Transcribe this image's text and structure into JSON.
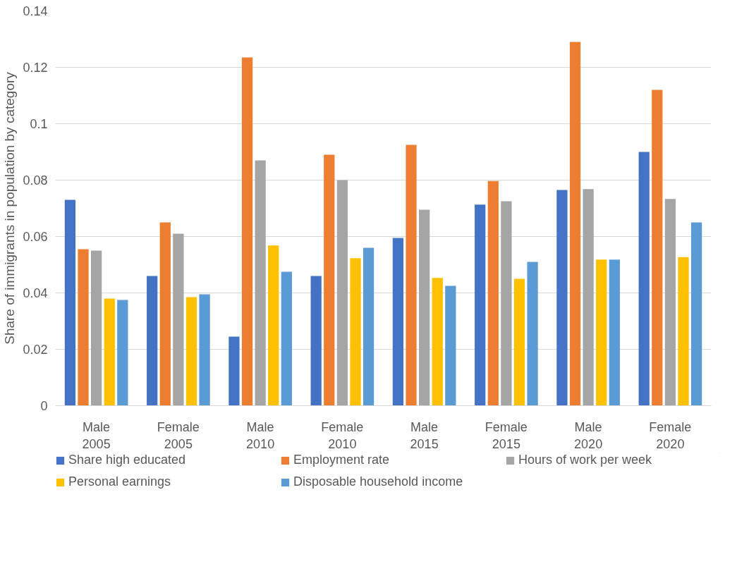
{
  "chart_data": {
    "type": "bar",
    "ylabel": "Share of immigrants in population by category",
    "categories": [
      "Male\n2005",
      "Female\n2005",
      "Male\n2010",
      "Female\n2010",
      "Male\n2015",
      "Female\n2015",
      "Male\n2020",
      "Female\n2020"
    ],
    "series": [
      {
        "name": "Share high educated",
        "color": "#4472c4",
        "values": [
          0.073,
          0.046,
          0.0245,
          0.046,
          0.0595,
          0.0713,
          0.0765,
          0.09
        ]
      },
      {
        "name": "Employment rate",
        "color": "#ed7d31",
        "values": [
          0.0555,
          0.065,
          0.1235,
          0.089,
          0.0925,
          0.0797,
          0.129,
          0.112
        ]
      },
      {
        "name": "Hours of work per week",
        "color": "#a5a5a5",
        "values": [
          0.055,
          0.061,
          0.087,
          0.08,
          0.0695,
          0.0725,
          0.0768,
          0.0733
        ]
      },
      {
        "name": "Personal earnings",
        "color": "#ffc000",
        "values": [
          0.038,
          0.0385,
          0.0568,
          0.0523,
          0.0453,
          0.045,
          0.0518,
          0.0527
        ]
      },
      {
        "name": "Disposable household income",
        "color": "#5b9bd5",
        "values": [
          0.0375,
          0.0395,
          0.0475,
          0.056,
          0.0425,
          0.051,
          0.0518,
          0.065
        ]
      }
    ],
    "ylim": [
      0,
      0.14
    ],
    "yticks": [
      0,
      0.02,
      0.04,
      0.06,
      0.08,
      0.1,
      0.12,
      0.14
    ],
    "grid": "y",
    "legend": "bottom"
  }
}
